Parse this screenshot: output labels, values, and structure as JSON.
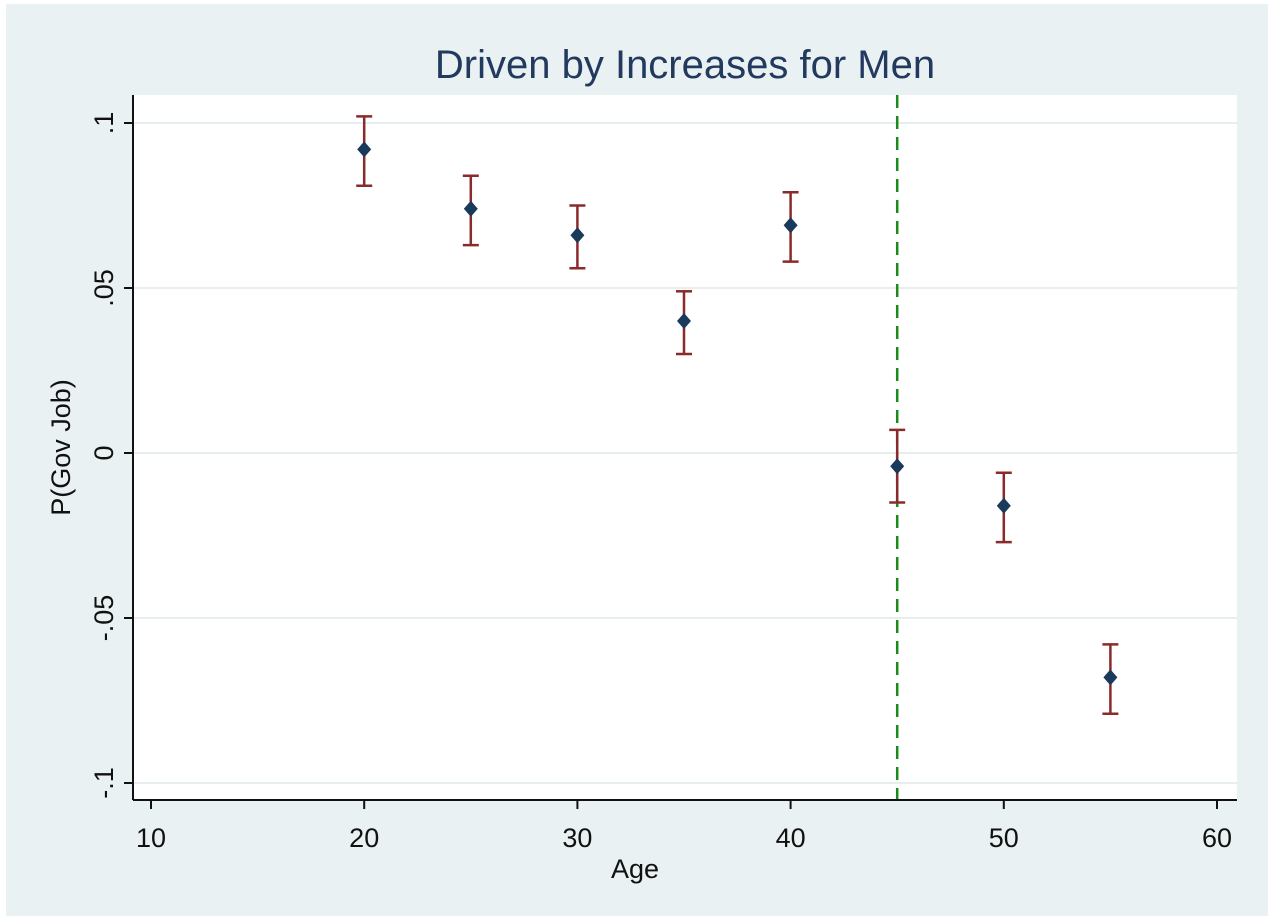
{
  "colors": {
    "background": "#eaf1f3",
    "plot_background": "#ffffff",
    "grid": "#e6eef0",
    "title": "#223a5e",
    "marker": "#1a3a5c",
    "error_bar": "#8b2a2a",
    "reference_line": "#1a8a1a"
  },
  "chart_data": {
    "type": "scatter",
    "title": "Driven by Increases for Men",
    "xlabel": "Age",
    "ylabel": "P(Gov Job)",
    "xlim": [
      10,
      60
    ],
    "ylim": [
      -0.1,
      0.1
    ],
    "x_ticks": [
      10,
      20,
      30,
      40,
      50,
      60
    ],
    "x_tick_labels": [
      "10",
      "20",
      "30",
      "40",
      "50",
      "60"
    ],
    "y_ticks": [
      0.1,
      0.05,
      0,
      -0.05,
      -0.1
    ],
    "y_tick_labels": [
      ".1",
      ".05",
      "0",
      "-.05",
      "-.1"
    ],
    "grid": "horizontal",
    "reference_line": {
      "x": 45,
      "style": "dashed"
    },
    "points": [
      {
        "x": 20,
        "y": 0.092,
        "lo": 0.081,
        "hi": 0.102
      },
      {
        "x": 25,
        "y": 0.074,
        "lo": 0.063,
        "hi": 0.084
      },
      {
        "x": 30,
        "y": 0.066,
        "lo": 0.056,
        "hi": 0.075
      },
      {
        "x": 35,
        "y": 0.04,
        "lo": 0.03,
        "hi": 0.049
      },
      {
        "x": 40,
        "y": 0.069,
        "lo": 0.058,
        "hi": 0.079
      },
      {
        "x": 45,
        "y": -0.004,
        "lo": -0.015,
        "hi": 0.007
      },
      {
        "x": 50,
        "y": -0.016,
        "lo": -0.027,
        "hi": -0.006
      },
      {
        "x": 55,
        "y": -0.068,
        "lo": -0.079,
        "hi": -0.058
      }
    ]
  }
}
